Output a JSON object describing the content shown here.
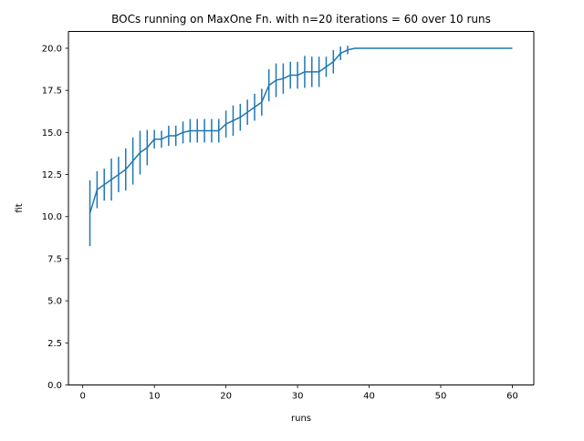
{
  "chart_data": {
    "type": "line",
    "title": "BOCs running on MaxOne Fn. with n=20 iterations = 60 over 10 runs",
    "xlabel": "runs",
    "ylabel": "fit",
    "xlim": [
      -2.0,
      63.0
    ],
    "ylim": [
      0.0,
      21.0
    ],
    "grid": false,
    "xticks": [
      0,
      10,
      20,
      30,
      40,
      50,
      60
    ],
    "xtick_labels": [
      "0",
      "10",
      "20",
      "30",
      "40",
      "50",
      "60"
    ],
    "yticks": [
      0.0,
      2.5,
      5.0,
      7.5,
      10.0,
      12.5,
      15.0,
      17.5,
      20.0
    ],
    "ytick_labels": [
      "0.0",
      "2.5",
      "5.0",
      "7.5",
      "10.0",
      "12.5",
      "15.0",
      "17.5",
      "20.0"
    ],
    "color": "#1f77b4",
    "series": [
      {
        "x": [
          1,
          2,
          3,
          4,
          5,
          6,
          7,
          8,
          9,
          10,
          11,
          12,
          13,
          14,
          15,
          16,
          17,
          18,
          19,
          20,
          21,
          22,
          23,
          24,
          25,
          26,
          27,
          28,
          29,
          30,
          31,
          32,
          33,
          34,
          35,
          36,
          37,
          38,
          39,
          40,
          41,
          42,
          43,
          44,
          45,
          46,
          47,
          48,
          49,
          50,
          51,
          52,
          53,
          54,
          55,
          56,
          57,
          58,
          59,
          60
        ],
        "y": [
          10.2,
          11.6,
          11.9,
          12.2,
          12.5,
          12.8,
          13.3,
          13.8,
          14.1,
          14.6,
          14.6,
          14.8,
          14.8,
          15.0,
          15.1,
          15.1,
          15.1,
          15.1,
          15.1,
          15.5,
          15.7,
          15.9,
          16.2,
          16.5,
          16.8,
          17.8,
          18.1,
          18.2,
          18.4,
          18.4,
          18.6,
          18.6,
          18.6,
          18.9,
          19.2,
          19.7,
          19.9,
          20.0,
          20.0,
          20.0,
          20.0,
          20.0,
          20.0,
          20.0,
          20.0,
          20.0,
          20.0,
          20.0,
          20.0,
          20.0,
          20.0,
          20.0,
          20.0,
          20.0,
          20.0,
          20.0,
          20.0,
          20.0,
          20.0,
          20.0
        ],
        "error": [
          1.95,
          1.1,
          0.95,
          1.25,
          1.05,
          1.25,
          1.4,
          1.3,
          1.05,
          0.55,
          0.5,
          0.6,
          0.6,
          0.65,
          0.7,
          0.7,
          0.7,
          0.7,
          0.7,
          0.8,
          0.9,
          0.8,
          0.75,
          0.8,
          0.8,
          0.95,
          1.0,
          0.9,
          0.8,
          0.8,
          0.95,
          0.9,
          0.9,
          0.6,
          0.7,
          0.4,
          0.25,
          0,
          0,
          0,
          0,
          0,
          0,
          0,
          0,
          0,
          0,
          0,
          0,
          0,
          0,
          0,
          0,
          0,
          0,
          0,
          0,
          0,
          0,
          0
        ]
      }
    ]
  }
}
